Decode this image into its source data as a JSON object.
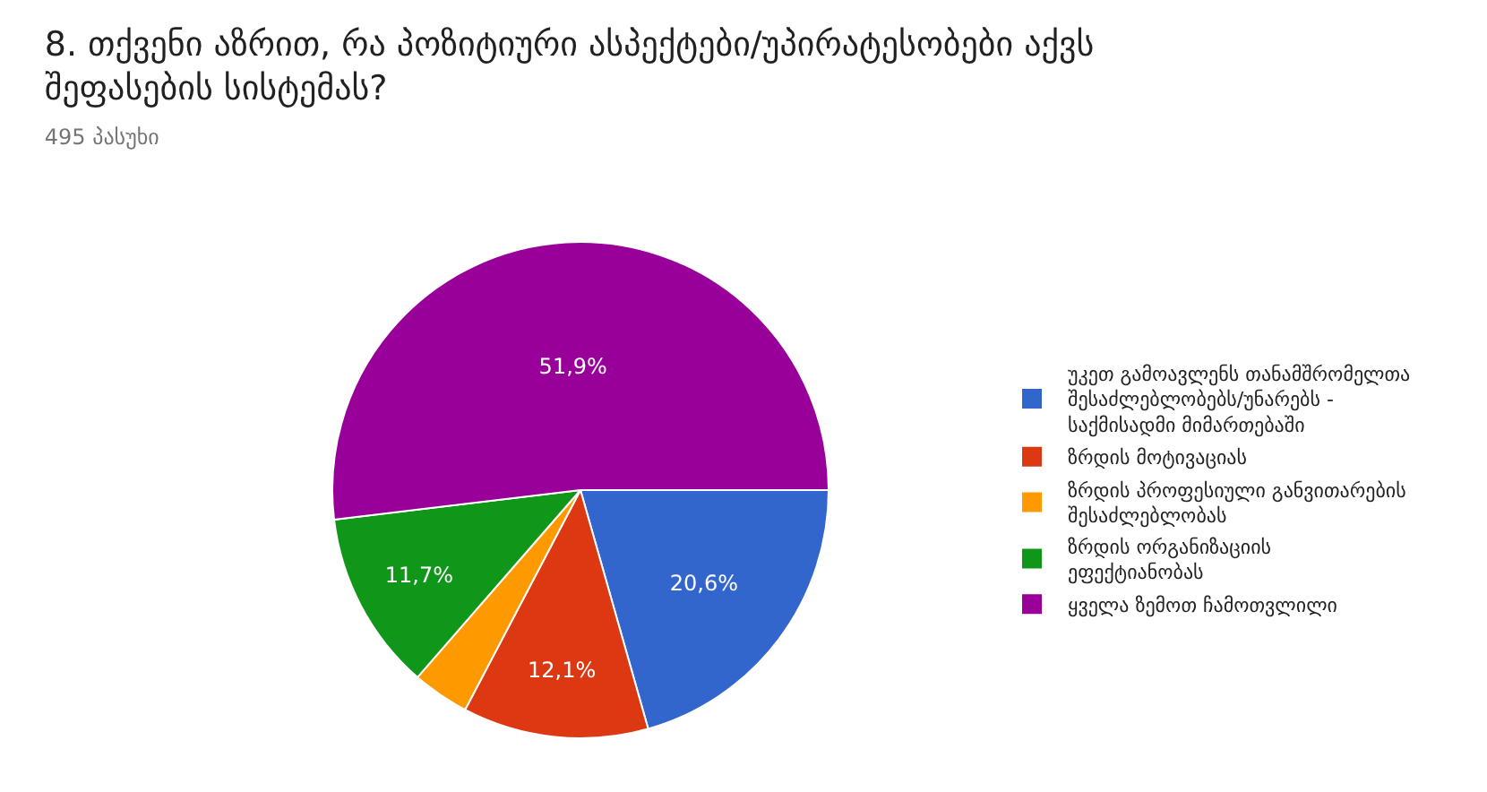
{
  "chart_data": {
    "type": "pie",
    "title": "8. თქვენი აზრით, რა პოზიტიური ასპექტები/უპირატესობები აქვს შეფასების სისტემას?",
    "subtitle": "495 პასუხი",
    "categories": [
      "უკეთ გამოავლენს თანამშრომელთა შესაძლებლობებს/უნარებს - საქმისადმი მიმართებაში",
      "ზრდის მოტივაციას",
      "ზრდის პროფესიული განვითარების შესაძლებლობას",
      "ზრდის ორგანიზაციის ეფექტიანობას",
      "ყველა ზემოთ ჩამოთვლილი"
    ],
    "values": [
      20.6,
      12.1,
      3.7,
      11.7,
      51.9
    ],
    "value_labels": [
      "20,6%",
      "12,1%",
      null,
      "11,7%",
      "51,9%"
    ],
    "colors": [
      "#3366cc",
      "#dc3912",
      "#ff9900",
      "#109618",
      "#990099"
    ],
    "legend": "right"
  }
}
